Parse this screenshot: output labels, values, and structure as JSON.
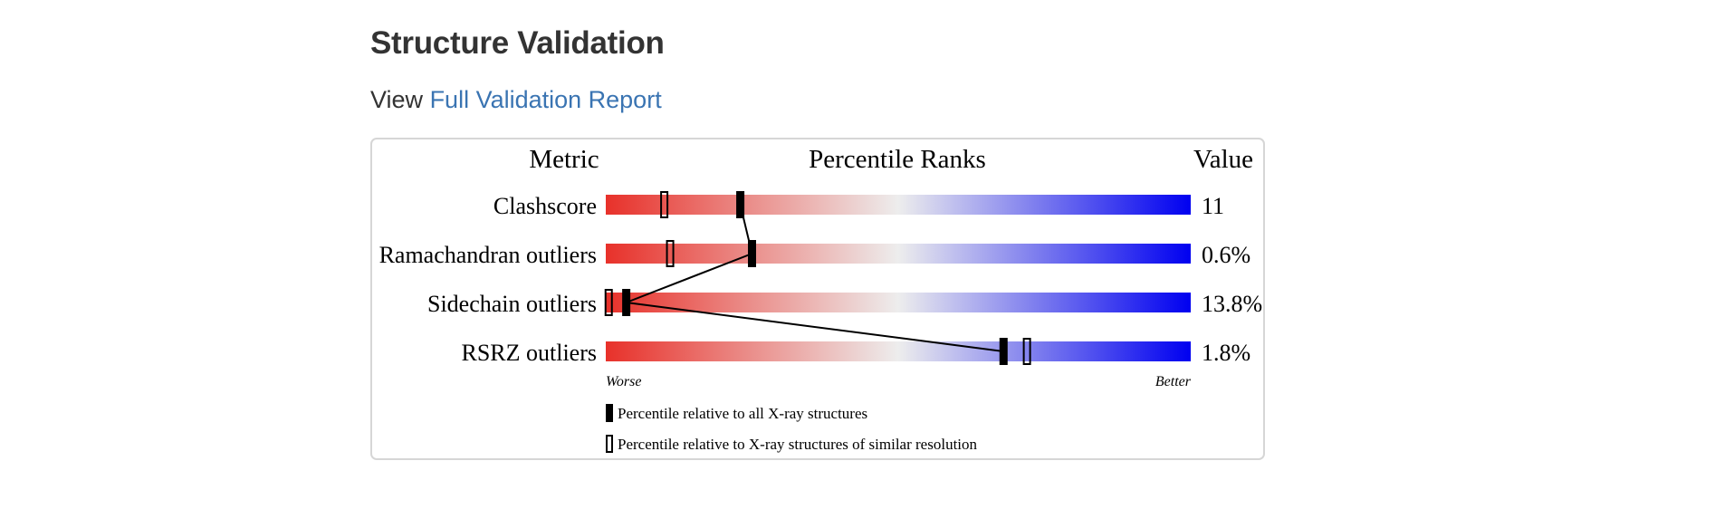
{
  "section": {
    "title": "Structure Validation",
    "view_prefix": "View",
    "report_link": "Full Validation Report"
  },
  "chart": {
    "headers": {
      "metric": "Metric",
      "percentile": "Percentile Ranks",
      "value": "Value"
    },
    "scale": {
      "worse": "Worse",
      "better": "Better",
      "colors": [
        "#e8312a",
        "#ededed",
        "#0000f0"
      ]
    },
    "legend": {
      "all": "Percentile relative to all X-ray structures",
      "similar": "Percentile relative to X-ray structures of similar resolution"
    },
    "rows": [
      {
        "metric": "Clashscore",
        "value": "11",
        "all_percentile": 23,
        "similar_percentile": 10
      },
      {
        "metric": "Ramachandran outliers",
        "value": "0.6%",
        "all_percentile": 25,
        "similar_percentile": 11
      },
      {
        "metric": "Sidechain outliers",
        "value": "13.8%",
        "all_percentile": 3.5,
        "similar_percentile": 0.5
      },
      {
        "metric": "RSRZ outliers",
        "value": "1.8%",
        "all_percentile": 68,
        "similar_percentile": 72
      }
    ]
  }
}
